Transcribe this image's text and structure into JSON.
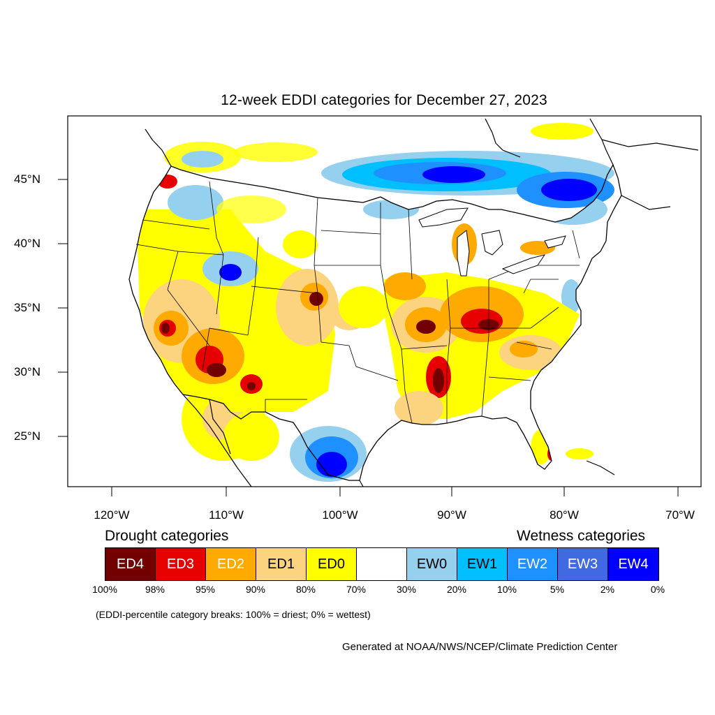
{
  "title": "12-week EDDI categories for December 27, 2023",
  "lat_labels": [
    "45°N",
    "40°N",
    "35°N",
    "30°N",
    "25°N"
  ],
  "lon_labels": [
    "120°W",
    "110°W",
    "100°W",
    "90°W",
    "80°W",
    "70°W"
  ],
  "legend": {
    "drought_heading": "Drought categories",
    "wetness_heading": "Wetness categories",
    "categories": [
      {
        "label": "ED4",
        "color": "#730000",
        "text_color": "#ffffff"
      },
      {
        "label": "ED3",
        "color": "#e60000",
        "text_color": "#ffffff"
      },
      {
        "label": "ED2",
        "color": "#ffaa00",
        "text_color": "#ffffff"
      },
      {
        "label": "ED1",
        "color": "#fcd37f",
        "text_color": "#000000"
      },
      {
        "label": "ED0",
        "color": "#ffff00",
        "text_color": "#000000"
      },
      {
        "label": "",
        "color": "#ffffff",
        "text_color": "#000000"
      },
      {
        "label": "EW0",
        "color": "#96d0ef",
        "text_color": "#000000"
      },
      {
        "label": "EW1",
        "color": "#00bfff",
        "text_color": "#000000"
      },
      {
        "label": "EW2",
        "color": "#1e90ff",
        "text_color": "#ffffff"
      },
      {
        "label": "EW3",
        "color": "#4169e1",
        "text_color": "#ffffff"
      },
      {
        "label": "EW4",
        "color": "#0000ff",
        "text_color": "#ffffff"
      }
    ],
    "percent_breaks": [
      "100%",
      "98%",
      "95%",
      "90%",
      "80%",
      "70%",
      "30%",
      "20%",
      "10%",
      "5%",
      "2%",
      "0%"
    ]
  },
  "note": "(EDDI-percentile category breaks: 100% = driest; 0% = wettest)",
  "credit": "Generated at NOAA/NWS/NCEP/Climate Prediction Center"
}
